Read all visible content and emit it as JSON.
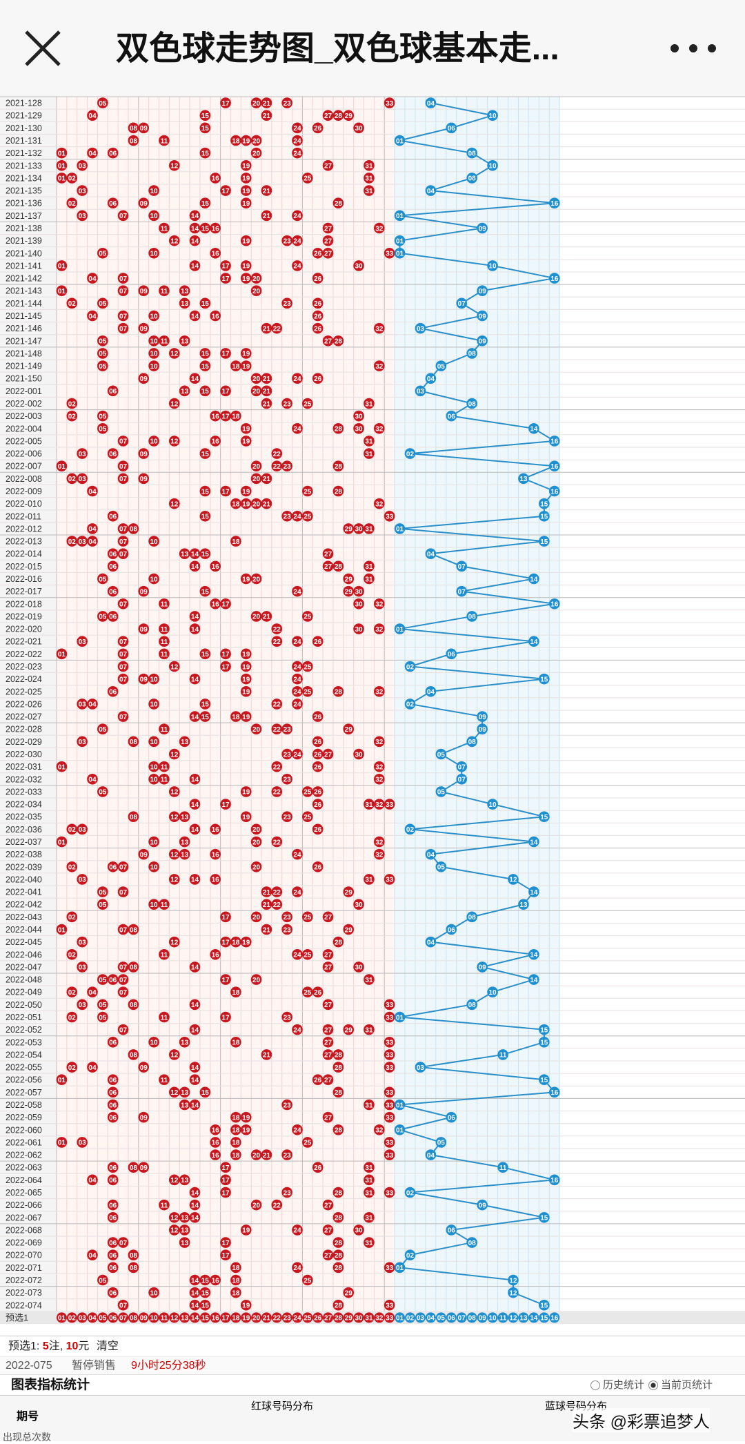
{
  "header": {
    "title": "双色球走势图_双色球基本走...",
    "close_icon": "close-icon",
    "more_icon": "more-horizontal-icon"
  },
  "chart_data": {
    "type": "table",
    "red_numbers": [
      "01",
      "02",
      "03",
      "04",
      "05",
      "06",
      "07",
      "08",
      "09",
      "10",
      "11",
      "12",
      "13",
      "14",
      "15",
      "16",
      "17",
      "18",
      "19",
      "20",
      "21",
      "22",
      "23",
      "24",
      "25",
      "26",
      "27",
      "28",
      "29",
      "30",
      "31",
      "32",
      "33"
    ],
    "blue_numbers": [
      "01",
      "02",
      "03",
      "04",
      "05",
      "06",
      "07",
      "08",
      "09",
      "10",
      "11",
      "12",
      "13",
      "14",
      "15",
      "16"
    ],
    "rows": [
      {
        "p": "2021-128",
        "r": [
          5,
          17,
          20,
          21,
          23,
          33
        ],
        "b": 4
      },
      {
        "p": "2021-129",
        "r": [
          4,
          15,
          21,
          27,
          28,
          29
        ],
        "b": 10
      },
      {
        "p": "2021-130",
        "r": [
          8,
          9,
          15,
          24,
          26,
          30
        ],
        "b": 6
      },
      {
        "p": "2021-131",
        "r": [
          8,
          11,
          18,
          19,
          20,
          24
        ],
        "b": 1
      },
      {
        "p": "2021-132",
        "r": [
          1,
          4,
          6,
          15,
          20,
          24
        ],
        "b": 8
      },
      {
        "p": "2021-133",
        "r": [
          1,
          3,
          12,
          19,
          27,
          31
        ],
        "b": 10
      },
      {
        "p": "2021-134",
        "r": [
          1,
          2,
          16,
          19,
          25,
          31
        ],
        "b": 8
      },
      {
        "p": "2021-135",
        "r": [
          3,
          10,
          17,
          19,
          21,
          31
        ],
        "b": 4
      },
      {
        "p": "2021-136",
        "r": [
          2,
          6,
          9,
          15,
          19,
          28
        ],
        "b": 16
      },
      {
        "p": "2021-137",
        "r": [
          3,
          7,
          10,
          14,
          21,
          24
        ],
        "b": 1
      },
      {
        "p": "2021-138",
        "r": [
          11,
          14,
          15,
          16,
          27,
          32
        ],
        "b": 9
      },
      {
        "p": "2021-139",
        "r": [
          12,
          14,
          19,
          23,
          24,
          27
        ],
        "b": 1
      },
      {
        "p": "2021-140",
        "r": [
          5,
          10,
          16,
          26,
          27,
          33
        ],
        "b": 1
      },
      {
        "p": "2021-141",
        "r": [
          1,
          14,
          17,
          19,
          24,
          30
        ],
        "b": 10
      },
      {
        "p": "2021-142",
        "r": [
          4,
          7,
          17,
          19,
          20,
          26
        ],
        "b": 16
      },
      {
        "p": "2021-143",
        "r": [
          1,
          7,
          9,
          11,
          13,
          20
        ],
        "b": 9
      },
      {
        "p": "2021-144",
        "r": [
          2,
          5,
          13,
          15,
          23,
          26
        ],
        "b": 7
      },
      {
        "p": "2021-145",
        "r": [
          4,
          7,
          10,
          14,
          16,
          26
        ],
        "b": 9
      },
      {
        "p": "2021-146",
        "r": [
          7,
          9,
          21,
          22,
          26,
          32
        ],
        "b": 3
      },
      {
        "p": "2021-147",
        "r": [
          5,
          10,
          11,
          13,
          27,
          28
        ],
        "b": 9
      },
      {
        "p": "2021-148",
        "r": [
          5,
          10,
          12,
          15,
          17,
          19
        ],
        "b": 8
      },
      {
        "p": "2021-149",
        "r": [
          5,
          10,
          15,
          18,
          19,
          32
        ],
        "b": 5
      },
      {
        "p": "2021-150",
        "r": [
          9,
          14,
          20,
          21,
          24,
          26
        ],
        "b": 4
      },
      {
        "p": "2022-001",
        "r": [
          6,
          13,
          15,
          17,
          20,
          21
        ],
        "b": 3
      },
      {
        "p": "2022-002",
        "r": [
          2,
          12,
          21,
          23,
          25,
          31
        ],
        "b": 8
      },
      {
        "p": "2022-003",
        "r": [
          2,
          5,
          16,
          17,
          18,
          30
        ],
        "b": 6
      },
      {
        "p": "2022-004",
        "r": [
          5,
          19,
          24,
          28,
          30,
          32
        ],
        "b": 14
      },
      {
        "p": "2022-005",
        "r": [
          7,
          10,
          12,
          16,
          19,
          31
        ],
        "b": 16
      },
      {
        "p": "2022-006",
        "r": [
          3,
          6,
          9,
          15,
          22,
          31
        ],
        "b": 2
      },
      {
        "p": "2022-007",
        "r": [
          1,
          7,
          20,
          22,
          23,
          28
        ],
        "b": 16
      },
      {
        "p": "2022-008",
        "r": [
          2,
          3,
          7,
          9,
          20,
          21
        ],
        "b": 13
      },
      {
        "p": "2022-009",
        "r": [
          4,
          15,
          17,
          19,
          25,
          28
        ],
        "b": 16
      },
      {
        "p": "2022-010",
        "r": [
          12,
          18,
          19,
          20,
          21,
          32
        ],
        "b": 15
      },
      {
        "p": "2022-011",
        "r": [
          6,
          15,
          23,
          24,
          25,
          33
        ],
        "b": 15
      },
      {
        "p": "2022-012",
        "r": [
          4,
          7,
          8,
          29,
          30,
          31
        ],
        "b": 1
      },
      {
        "p": "2022-013",
        "r": [
          2,
          3,
          4,
          7,
          10,
          18
        ],
        "b": 15
      },
      {
        "p": "2022-014",
        "r": [
          6,
          7,
          13,
          14,
          15,
          27
        ],
        "b": 4
      },
      {
        "p": "2022-015",
        "r": [
          6,
          14,
          16,
          27,
          28,
          31
        ],
        "b": 7
      },
      {
        "p": "2022-016",
        "r": [
          5,
          10,
          19,
          20,
          29,
          31
        ],
        "b": 14
      },
      {
        "p": "2022-017",
        "r": [
          6,
          9,
          15,
          24,
          29,
          30
        ],
        "b": 7
      },
      {
        "p": "2022-018",
        "r": [
          7,
          11,
          16,
          17,
          30,
          32
        ],
        "b": 16
      },
      {
        "p": "2022-019",
        "r": [
          5,
          6,
          14,
          20,
          21,
          25
        ],
        "b": 8
      },
      {
        "p": "2022-020",
        "r": [
          9,
          11,
          14,
          22,
          30,
          32
        ],
        "b": 1
      },
      {
        "p": "2022-021",
        "r": [
          3,
          7,
          11,
          22,
          24,
          26
        ],
        "b": 14
      },
      {
        "p": "2022-022",
        "r": [
          1,
          7,
          11,
          15,
          17,
          19
        ],
        "b": 6
      },
      {
        "p": "2022-023",
        "r": [
          7,
          12,
          17,
          19,
          24,
          25
        ],
        "b": 2
      },
      {
        "p": "2022-024",
        "r": [
          7,
          9,
          10,
          14,
          19,
          24
        ],
        "b": 15
      },
      {
        "p": "2022-025",
        "r": [
          6,
          19,
          24,
          25,
          28,
          32
        ],
        "b": 4
      },
      {
        "p": "2022-026",
        "r": [
          3,
          4,
          10,
          15,
          22,
          24
        ],
        "b": 2
      },
      {
        "p": "2022-027",
        "r": [
          7,
          14,
          15,
          18,
          19,
          26
        ],
        "b": 9
      },
      {
        "p": "2022-028",
        "r": [
          5,
          11,
          20,
          22,
          23,
          29
        ],
        "b": 9
      },
      {
        "p": "2022-029",
        "r": [
          3,
          8,
          10,
          13,
          26,
          32
        ],
        "b": 8
      },
      {
        "p": "2022-030",
        "r": [
          12,
          23,
          24,
          26,
          27,
          30
        ],
        "b": 5
      },
      {
        "p": "2022-031",
        "r": [
          1,
          10,
          11,
          22,
          26,
          32
        ],
        "b": 7
      },
      {
        "p": "2022-032",
        "r": [
          4,
          10,
          11,
          14,
          23,
          32
        ],
        "b": 7
      },
      {
        "p": "2022-033",
        "r": [
          5,
          12,
          19,
          22,
          25,
          26
        ],
        "b": 5
      },
      {
        "p": "2022-034",
        "r": [
          14,
          17,
          26,
          31,
          32,
          33
        ],
        "b": 10
      },
      {
        "p": "2022-035",
        "r": [
          8,
          12,
          13,
          19,
          23,
          25
        ],
        "b": 15
      },
      {
        "p": "2022-036",
        "r": [
          2,
          3,
          14,
          16,
          20,
          26
        ],
        "b": 2
      },
      {
        "p": "2022-037",
        "r": [
          1,
          10,
          13,
          20,
          22,
          32
        ],
        "b": 14
      },
      {
        "p": "2022-038",
        "r": [
          9,
          12,
          13,
          16,
          24,
          32
        ],
        "b": 4
      },
      {
        "p": "2022-039",
        "r": [
          2,
          6,
          7,
          10,
          20,
          26
        ],
        "b": 5
      },
      {
        "p": "2022-040",
        "r": [
          3,
          12,
          14,
          16,
          31,
          33
        ],
        "b": 12
      },
      {
        "p": "2022-041",
        "r": [
          5,
          7,
          21,
          22,
          24,
          29
        ],
        "b": 14
      },
      {
        "p": "2022-042",
        "r": [
          5,
          10,
          11,
          21,
          22,
          30
        ],
        "b": 13
      },
      {
        "p": "2022-043",
        "r": [
          2,
          17,
          20,
          23,
          25,
          27
        ],
        "b": 8
      },
      {
        "p": "2022-044",
        "r": [
          1,
          7,
          8,
          21,
          23,
          29
        ],
        "b": 6
      },
      {
        "p": "2022-045",
        "r": [
          3,
          12,
          17,
          18,
          19,
          28
        ],
        "b": 4
      },
      {
        "p": "2022-046",
        "r": [
          2,
          11,
          16,
          24,
          25,
          27
        ],
        "b": 14
      },
      {
        "p": "2022-047",
        "r": [
          3,
          7,
          8,
          14,
          27,
          30
        ],
        "b": 9
      },
      {
        "p": "2022-048",
        "r": [
          5,
          6,
          7,
          17,
          20,
          31
        ],
        "b": 14
      },
      {
        "p": "2022-049",
        "r": [
          2,
          4,
          7,
          18,
          25,
          26
        ],
        "b": 10
      },
      {
        "p": "2022-050",
        "r": [
          3,
          5,
          8,
          14,
          27,
          33
        ],
        "b": 8
      },
      {
        "p": "2022-051",
        "r": [
          2,
          5,
          11,
          17,
          23,
          33
        ],
        "b": 1
      },
      {
        "p": "2022-052",
        "r": [
          7,
          14,
          24,
          27,
          29,
          31
        ],
        "b": 15
      },
      {
        "p": "2022-053",
        "r": [
          6,
          10,
          13,
          18,
          27,
          33
        ],
        "b": 15
      },
      {
        "p": "2022-054",
        "r": [
          8,
          12,
          21,
          27,
          28,
          33
        ],
        "b": 11
      },
      {
        "p": "2022-055",
        "r": [
          2,
          4,
          9,
          14,
          28,
          33
        ],
        "b": 3
      },
      {
        "p": "2022-056",
        "r": [
          1,
          6,
          11,
          14,
          26,
          27
        ],
        "b": 15
      },
      {
        "p": "2022-057",
        "r": [
          6,
          12,
          13,
          15,
          28,
          33
        ],
        "b": 16
      },
      {
        "p": "2022-058",
        "r": [
          6,
          13,
          14,
          23,
          31,
          33
        ],
        "b": 1
      },
      {
        "p": "2022-059",
        "r": [
          6,
          9,
          18,
          19,
          27,
          33
        ],
        "b": 6
      },
      {
        "p": "2022-060",
        "r": [
          16,
          18,
          19,
          24,
          28,
          32
        ],
        "b": 1
      },
      {
        "p": "2022-061",
        "r": [
          1,
          3,
          16,
          18,
          25,
          33
        ],
        "b": 5
      },
      {
        "p": "2022-062",
        "r": [
          16,
          18,
          20,
          21,
          23,
          33
        ],
        "b": 4
      },
      {
        "p": "2022-063",
        "r": [
          6,
          8,
          9,
          17,
          26,
          31
        ],
        "b": 11
      },
      {
        "p": "2022-064",
        "r": [
          4,
          6,
          12,
          13,
          17,
          31
        ],
        "b": 16
      },
      {
        "p": "2022-065",
        "r": [
          14,
          17,
          23,
          28,
          31,
          33
        ],
        "b": 2
      },
      {
        "p": "2022-066",
        "r": [
          6,
          11,
          14,
          20,
          22,
          27
        ],
        "b": 9
      },
      {
        "p": "2022-067",
        "r": [
          6,
          12,
          13,
          14,
          28,
          31
        ],
        "b": 15
      },
      {
        "p": "2022-068",
        "r": [
          12,
          13,
          19,
          24,
          27,
          30
        ],
        "b": 6
      },
      {
        "p": "2022-069",
        "r": [
          6,
          7,
          13,
          17,
          28,
          31
        ],
        "b": 8
      },
      {
        "p": "2022-070",
        "r": [
          4,
          6,
          8,
          17,
          27,
          28
        ],
        "b": 2
      },
      {
        "p": "2022-071",
        "r": [
          6,
          8,
          18,
          24,
          28,
          33
        ],
        "b": 1
      },
      {
        "p": "2022-072",
        "r": [
          5,
          14,
          15,
          16,
          18,
          25
        ],
        "b": 12
      },
      {
        "p": "2022-073",
        "r": [
          6,
          10,
          14,
          15,
          18,
          29
        ],
        "b": 12
      },
      {
        "p": "2022-074",
        "r": [
          7,
          14,
          15,
          19,
          28,
          33
        ],
        "b": 15
      }
    ]
  },
  "preselect": {
    "label": "预选1",
    "numbers": [
      "01",
      "02",
      "03",
      "04",
      "05",
      "06",
      "07",
      "08",
      "09",
      "10",
      "11",
      "12",
      "13",
      "14",
      "15",
      "16",
      "17",
      "18",
      "19",
      "20",
      "21",
      "22",
      "23",
      "24",
      "25",
      "26",
      "27",
      "28",
      "29",
      "30",
      "31",
      "32",
      "33",
      "01",
      "02",
      "03",
      "04",
      "05",
      "06",
      "07",
      "08",
      "09",
      "10",
      "11",
      "12",
      "13",
      "14",
      "15",
      "16"
    ]
  },
  "selection": {
    "label": "预选1:",
    "count": "5",
    "unit_count": "注,",
    "amount": "10",
    "unit_amount": "元",
    "clear": "清空"
  },
  "sale": {
    "period": "2022-075",
    "status": "暂停销售",
    "countdown": "9小时25分38秒"
  },
  "stats": {
    "title": "图表指标统计",
    "opt_history": "历史统计",
    "opt_current": "当前页统计"
  },
  "table": {
    "col_period": "期号",
    "col_red": "红球号码分布",
    "col_blue": "蓝球号码分布",
    "row_first": "出现总次数"
  },
  "watermark": "头条 @彩票追梦人"
}
